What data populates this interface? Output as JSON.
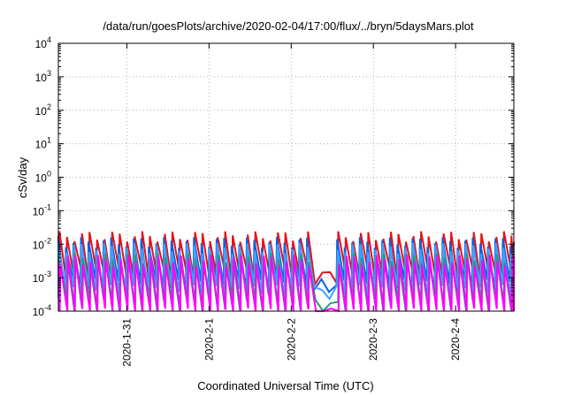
{
  "chart_data": {
    "type": "line",
    "title": "/data/run/goesPlots/archive/2020-02-04/17:00/flux/../bryn/5daysMars.plot",
    "xlabel": "Coordinated Universal Time (UTC)",
    "ylabel": "cSv/day",
    "yscale": "log",
    "ylim": [
      0.0001,
      10000
    ],
    "xlim": [
      "2020-01-30T04:00",
      "2020-02-04T17:00"
    ],
    "grid": true,
    "x_ticks": [
      "2020-1-31",
      "2020-2-1",
      "2020-2-2",
      "2020-2-3",
      "2020-2-4"
    ],
    "y_ticks": [
      {
        "base": "10",
        "exp": "-4"
      },
      {
        "base": "10",
        "exp": "-3"
      },
      {
        "base": "10",
        "exp": "-2"
      },
      {
        "base": "10",
        "exp": "-1"
      },
      {
        "base": "10",
        "exp": "0"
      },
      {
        "base": "10",
        "exp": "1"
      },
      {
        "base": "10",
        "exp": "2"
      },
      {
        "base": "10",
        "exp": "3"
      },
      {
        "base": "10",
        "exp": "4"
      }
    ],
    "pattern": {
      "period_hours": 2.2,
      "gap": {
        "start": "2020-02-02T06:30",
        "end": "2020-02-02T12:00"
      },
      "note": "sawtooth: sharp rise to peak then decay to trough each period"
    },
    "series": [
      {
        "color": "#e8101a",
        "peak": 0.018,
        "trough": 0.0012,
        "offset_hours": 0.3
      },
      {
        "color": "#1060e0",
        "peak": 0.012,
        "trough": 0.0006,
        "offset_hours": 0.0
      },
      {
        "color": "#40a0ff",
        "peak": 0.008,
        "trough": 0.0004,
        "offset_hours": 0.15
      },
      {
        "color": "#20a070",
        "peak": 0.004,
        "trough": 0.00015,
        "offset_hours": 0.45
      },
      {
        "color": "#ff00ff",
        "peak": 0.0035,
        "trough": 8e-05,
        "offset_hours": 0.6
      }
    ]
  }
}
